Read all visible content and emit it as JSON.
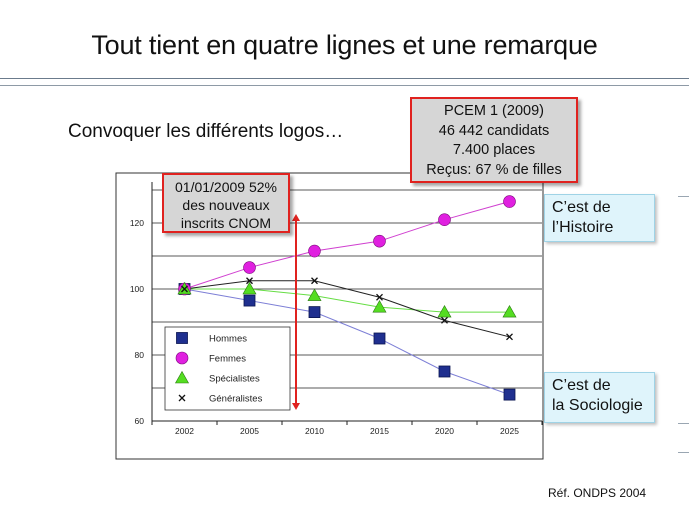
{
  "slide": {
    "title": "Tout tient en quatre lignes et une remarque",
    "subtitle": "Convoquer les différents logos…",
    "reference": "Réf. ONDPS 2004"
  },
  "callouts": {
    "pcem": [
      "PCEM 1 (2009)",
      "46 442 candidats",
      "7.400 places",
      "Reçus: 67 % de filles"
    ],
    "cnom": [
      "01/01/2009 52%",
      "des nouveaux",
      "inscrits CNOM"
    ],
    "histoire": [
      "C’est de",
      "l’Histoire"
    ],
    "sociologie": [
      "C’est de",
      "la Sociologie"
    ]
  },
  "colors": {
    "accent_red": "#e0221f",
    "hommes": "#1f2f8f",
    "femmes": "#e020e0",
    "specialistes": "#55dd22",
    "generalistes": "#111111",
    "callout_gray": "#d6d6d6",
    "callout_blue": "#dff4fb"
  },
  "chart_data": {
    "type": "line",
    "categories": [
      "2002",
      "2005",
      "2010",
      "2015",
      "2020",
      "2025"
    ],
    "yticks": [
      60,
      80,
      100,
      120
    ],
    "ylim": [
      60,
      130
    ],
    "grid": true,
    "legend_position": "bottom-left",
    "series": [
      {
        "name": "Hommes",
        "marker": "square",
        "color": "#1f2f8f",
        "line_color": "#7d7fd6",
        "values": [
          100,
          96.5,
          93,
          85,
          75,
          68
        ]
      },
      {
        "name": "Femmes",
        "marker": "circle",
        "color": "#e020e0",
        "line_color": "#d040d0",
        "values": [
          100,
          106.5,
          111.5,
          114.5,
          121,
          126.5
        ]
      },
      {
        "name": "Spécialistes",
        "marker": "triangle",
        "color": "#55dd22",
        "line_color": "#66dd44",
        "values": [
          100,
          100,
          98,
          94.5,
          93,
          93
        ]
      },
      {
        "name": "Généralistes",
        "marker": "x",
        "color": "#111111",
        "line_color": "#222222",
        "values": [
          100,
          102.5,
          102.5,
          97.5,
          90.5,
          85.5
        ]
      }
    ],
    "annotation": {
      "label_ref": "callouts.cnom",
      "x": "2009",
      "arrow": "double-vertical"
    }
  }
}
